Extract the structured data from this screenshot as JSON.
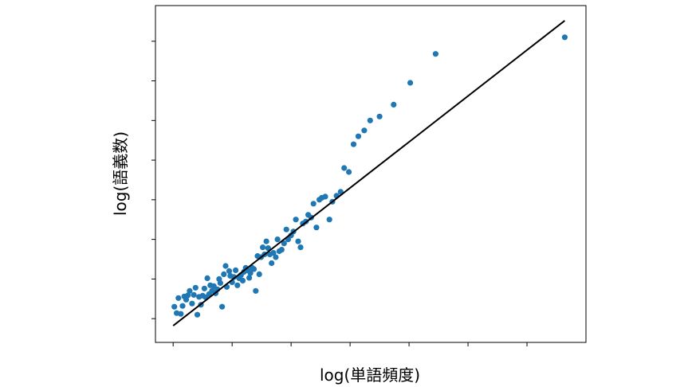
{
  "chart_data": {
    "type": "scatter",
    "xlabel": "log(単語頻度)",
    "ylabel": "log(語義数)",
    "xlim": [
      -0.3,
      7.0
    ],
    "ylim": [
      -0.6,
      7.9
    ],
    "xticks": [
      0,
      1,
      2,
      3,
      4,
      5,
      6
    ],
    "yticks": [
      0,
      1,
      2,
      3,
      4,
      5,
      6,
      7
    ],
    "tick_labels_visible": false,
    "grid": false,
    "colors": {
      "points": "#1f77b4",
      "line": "#000000",
      "frame": "#000000"
    },
    "series": [
      {
        "type": "scatter",
        "x": [
          0.02,
          0.06,
          0.09,
          0.13,
          0.16,
          0.19,
          0.22,
          0.25,
          0.28,
          0.32,
          0.35,
          0.38,
          0.41,
          0.44,
          0.47,
          0.5,
          0.53,
          0.55,
          0.58,
          0.61,
          0.63,
          0.66,
          0.69,
          0.72,
          0.75,
          0.78,
          0.8,
          0.83,
          0.86,
          0.89,
          0.91,
          0.95,
          0.97,
          1.0,
          1.03,
          1.06,
          1.09,
          1.12,
          1.15,
          1.18,
          1.2,
          1.23,
          1.26,
          1.29,
          1.31,
          1.34,
          1.37,
          1.4,
          1.43,
          1.46,
          1.49,
          1.52,
          1.55,
          1.58,
          1.61,
          1.64,
          1.67,
          1.7,
          1.74,
          1.77,
          1.8,
          1.84,
          1.88,
          1.92,
          1.95,
          2.0,
          2.04,
          2.08,
          2.12,
          2.16,
          2.2,
          2.25,
          2.29,
          2.34,
          2.38,
          2.43,
          2.48,
          2.52,
          2.58,
          2.65,
          2.7,
          2.77,
          2.84,
          2.9,
          2.98,
          3.06,
          3.14,
          3.24,
          3.34,
          3.5,
          3.74,
          4.02,
          4.45,
          6.64
        ],
        "y": [
          0.3,
          0.14,
          0.52,
          0.12,
          0.32,
          0.56,
          0.48,
          0.59,
          0.7,
          0.38,
          0.6,
          0.78,
          0.1,
          0.55,
          0.35,
          0.58,
          0.76,
          0.54,
          1.02,
          0.62,
          0.84,
          0.7,
          0.82,
          0.64,
          0.74,
          1.0,
          0.9,
          0.3,
          1.12,
          1.33,
          0.8,
          1.2,
          1.08,
          0.92,
          1.05,
          1.22,
          0.84,
          1.02,
          1.1,
          0.96,
          1.18,
          1.28,
          1.22,
          1.03,
          1.15,
          1.28,
          1.25,
          0.7,
          1.58,
          1.12,
          1.55,
          1.8,
          1.62,
          1.95,
          1.78,
          1.62,
          1.4,
          1.66,
          1.55,
          2.0,
          1.7,
          1.74,
          1.9,
          2.25,
          2.0,
          2.1,
          2.2,
          2.5,
          1.95,
          1.8,
          2.4,
          2.45,
          2.62,
          2.55,
          2.9,
          2.3,
          3.0,
          3.05,
          3.08,
          2.5,
          2.95,
          3.1,
          3.2,
          3.8,
          3.7,
          4.4,
          4.6,
          4.75,
          5.0,
          5.1,
          5.4,
          5.95,
          6.68,
          7.1
        ]
      },
      {
        "type": "line",
        "x": [
          0.0,
          6.64
        ],
        "y": [
          -0.18,
          7.52
        ]
      }
    ]
  }
}
